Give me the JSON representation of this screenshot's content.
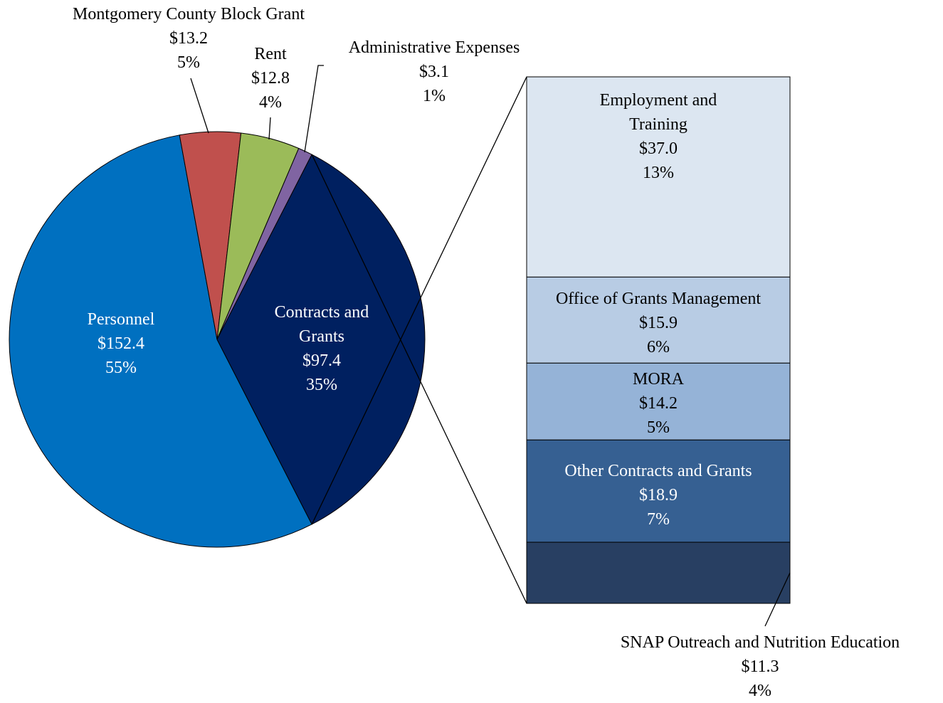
{
  "chart_data": [
    {
      "type": "pie",
      "categories": [
        "Personnel",
        "Montgomery County Block Grant",
        "Rent",
        "Administrative Expenses",
        "Contracts and Grants"
      ],
      "values": [
        152.4,
        13.2,
        12.8,
        3.1,
        97.4
      ],
      "value_labels": [
        "$152.4",
        "$13.2",
        "$12.8",
        "$3.1",
        "$97.4"
      ],
      "percents": [
        55,
        5,
        4,
        1,
        35
      ],
      "percent_labels": [
        "55%",
        "5%",
        "4%",
        "1%",
        "35%"
      ],
      "colors": [
        "#0070c0",
        "#c0504d",
        "#9bbb59",
        "#8064a2",
        "#002060"
      ]
    },
    {
      "type": "stacked-bar",
      "categories": [
        "Employment and Training",
        "Office of Grants Management",
        "MORA",
        "Other Contracts and Grants",
        "SNAP Outreach and Nutrition Education"
      ],
      "values": [
        37.0,
        15.9,
        14.2,
        18.9,
        11.3
      ],
      "value_labels": [
        "$37.0",
        "$15.9",
        "$14.2",
        "$18.9",
        "$11.3"
      ],
      "percents": [
        13,
        6,
        5,
        7,
        4
      ],
      "percent_labels": [
        "13%",
        "6%",
        "5%",
        "7%",
        "4%"
      ],
      "colors": [
        "#dce6f1",
        "#b8cce4",
        "#95b3d7",
        "#366092",
        "#283f62"
      ]
    }
  ]
}
